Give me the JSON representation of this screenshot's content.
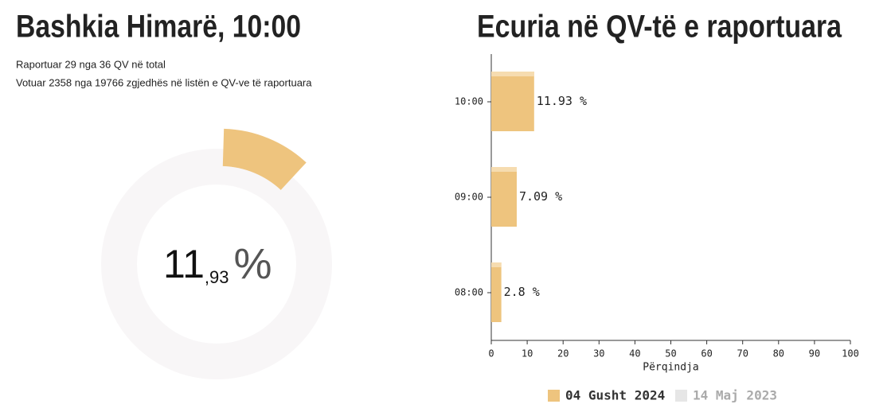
{
  "header": {
    "title": "Bashkia Himarë, 10:00",
    "lines": [
      "Raportuar 29 nga 36 QV në total",
      "Votuar 2358 nga 19766 zgjedhës në listën e QV-ve të raportuara"
    ]
  },
  "gauge": {
    "value": 11.93,
    "int_label": "11",
    "dec_label": ",93",
    "unit": "%",
    "max": 100,
    "color": "#eec47e",
    "track_color": "#f8f6f7"
  },
  "chart_data": {
    "type": "bar",
    "orientation": "horizontal",
    "title": "Ecuria në QV-të e raportuara",
    "categories": [
      "10:00",
      "09:00",
      "08:00"
    ],
    "series": [
      {
        "name": "04 Gusht 2024",
        "color": "#eec47e",
        "values": [
          11.93,
          7.09,
          2.8
        ],
        "value_labels": [
          "11.93 %",
          "7.09 %",
          "2.8 %"
        ]
      },
      {
        "name": "14 Maj 2023",
        "color": "#e6e6e6",
        "values": [
          null,
          null,
          null
        ]
      }
    ],
    "xlim": [
      0,
      100
    ],
    "xticks": [
      0,
      10,
      20,
      30,
      40,
      50,
      60,
      70,
      80,
      90,
      100
    ],
    "xlabel": "Përqindja",
    "legend": "bottom"
  }
}
